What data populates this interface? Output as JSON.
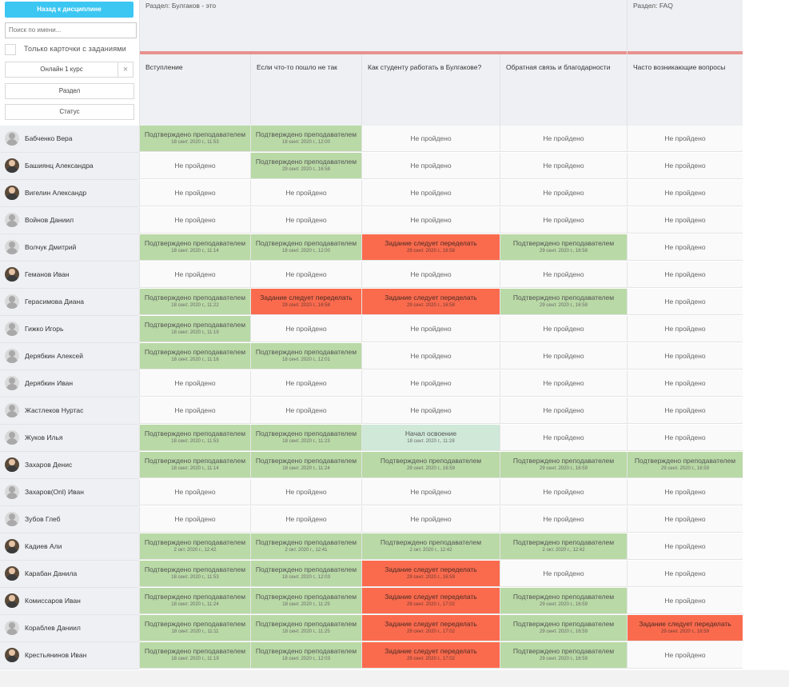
{
  "panel": {
    "back_label": "Назад к дисциплине",
    "search_placeholder": "Поиск по имени...",
    "only_cards_label": "Только карточки с заданиями",
    "course_value": "Онлайн 1 курс",
    "clear_icon": "×",
    "section_label": "Раздел",
    "status_label": "Статус"
  },
  "sections": [
    {
      "title": "Раздел: Булгаков - это"
    },
    {
      "title": "Раздел: FAQ"
    }
  ],
  "columns": [
    {
      "label": "Вступление"
    },
    {
      "label": "Если что-то пошло не так"
    },
    {
      "label": "Как студенту работать в Булгакове?"
    },
    {
      "label": "Обратная связь и благодарности"
    },
    {
      "label": "Часто возникающие вопросы"
    }
  ],
  "statuses": {
    "approved": "Подтверждено преподавателем",
    "redo": "Задание следует переделать",
    "none": "Не пройдено",
    "started": "Начал освоение"
  },
  "rows": [
    {
      "name": "Бабченко Вера",
      "avatar": "default",
      "cells": [
        {
          "s": "approved",
          "d": "18 сент. 2020 г., 11:53"
        },
        {
          "s": "approved",
          "d": "18 сент. 2020 г., 12:00"
        },
        {
          "s": "none"
        },
        {
          "s": "none"
        },
        {
          "s": "none"
        }
      ]
    },
    {
      "name": "Башиянц Александра",
      "avatar": "photo",
      "cells": [
        {
          "s": "none"
        },
        {
          "s": "approved",
          "d": "29 сент. 2020 г., 16:58"
        },
        {
          "s": "none"
        },
        {
          "s": "none"
        },
        {
          "s": "none"
        }
      ]
    },
    {
      "name": "Вигелин Александр",
      "avatar": "photo",
      "cells": [
        {
          "s": "none"
        },
        {
          "s": "none"
        },
        {
          "s": "none"
        },
        {
          "s": "none"
        },
        {
          "s": "none"
        }
      ]
    },
    {
      "name": "Войнов Даниил",
      "avatar": "default",
      "cells": [
        {
          "s": "none"
        },
        {
          "s": "none"
        },
        {
          "s": "none"
        },
        {
          "s": "none"
        },
        {
          "s": "none"
        }
      ]
    },
    {
      "name": "Волчук Дмитрий",
      "avatar": "default",
      "cells": [
        {
          "s": "approved",
          "d": "18 сент. 2020 г., 11:14"
        },
        {
          "s": "approved",
          "d": "18 сент. 2020 г., 12:00"
        },
        {
          "s": "redo",
          "d": "29 сент. 2020 г., 16:58"
        },
        {
          "s": "approved",
          "d": "29 сент. 2020 г., 16:58"
        },
        {
          "s": "none"
        }
      ]
    },
    {
      "name": "Геманов Иван",
      "avatar": "photo",
      "cells": [
        {
          "s": "none"
        },
        {
          "s": "none"
        },
        {
          "s": "none"
        },
        {
          "s": "none"
        },
        {
          "s": "none"
        }
      ]
    },
    {
      "name": "Герасимова Диана",
      "avatar": "default",
      "cells": [
        {
          "s": "approved",
          "d": "18 сент. 2020 г., 11:22"
        },
        {
          "s": "redo",
          "d": "29 сент. 2020 г., 16:58"
        },
        {
          "s": "redo",
          "d": "29 сент. 2020 г., 16:58"
        },
        {
          "s": "approved",
          "d": "29 сент. 2020 г., 16:58"
        },
        {
          "s": "none"
        }
      ]
    },
    {
      "name": "Гижко Игорь",
      "avatar": "default",
      "cells": [
        {
          "s": "approved",
          "d": "18 сент. 2020 г., 11:19"
        },
        {
          "s": "none"
        },
        {
          "s": "none"
        },
        {
          "s": "none"
        },
        {
          "s": "none"
        }
      ]
    },
    {
      "name": "Дерябкин Алексей",
      "avatar": "default",
      "cells": [
        {
          "s": "approved",
          "d": "18 сент. 2020 г., 11:16"
        },
        {
          "s": "approved",
          "d": "18 сент. 2020 г., 12:01"
        },
        {
          "s": "none"
        },
        {
          "s": "none"
        },
        {
          "s": "none"
        }
      ]
    },
    {
      "name": "Дерябкин Иван",
      "avatar": "default",
      "cells": [
        {
          "s": "none"
        },
        {
          "s": "none"
        },
        {
          "s": "none"
        },
        {
          "s": "none"
        },
        {
          "s": "none"
        }
      ]
    },
    {
      "name": "Жастлеков Нуртас",
      "avatar": "default",
      "cells": [
        {
          "s": "none"
        },
        {
          "s": "none"
        },
        {
          "s": "none"
        },
        {
          "s": "none"
        },
        {
          "s": "none"
        }
      ]
    },
    {
      "name": "Жуков Илья",
      "avatar": "default",
      "cells": [
        {
          "s": "approved",
          "d": "18 сент. 2020 г., 11:53"
        },
        {
          "s": "approved",
          "d": "18 сент. 2020 г., 11:23"
        },
        {
          "s": "started",
          "d": "18 сент. 2020 г., 11:28"
        },
        {
          "s": "none"
        },
        {
          "s": "none"
        }
      ]
    },
    {
      "name": "Захаров Денис",
      "avatar": "photo",
      "cells": [
        {
          "s": "approved",
          "d": "18 сент. 2020 г., 11:14"
        },
        {
          "s": "approved",
          "d": "18 сент. 2020 г., 11:24"
        },
        {
          "s": "approved",
          "d": "29 сент. 2020 г., 16:59"
        },
        {
          "s": "approved",
          "d": "29 сент. 2020 г., 16:59"
        },
        {
          "s": "approved",
          "d": "29 сент. 2020 г., 16:59"
        }
      ]
    },
    {
      "name": "Захаров(Onl) Иван",
      "avatar": "default",
      "cells": [
        {
          "s": "none"
        },
        {
          "s": "none"
        },
        {
          "s": "none"
        },
        {
          "s": "none"
        },
        {
          "s": "none"
        }
      ]
    },
    {
      "name": "Зубов Глеб",
      "avatar": "default",
      "cells": [
        {
          "s": "none"
        },
        {
          "s": "none"
        },
        {
          "s": "none"
        },
        {
          "s": "none"
        },
        {
          "s": "none"
        }
      ]
    },
    {
      "name": "Кадиев Али",
      "avatar": "photo",
      "cells": [
        {
          "s": "approved",
          "d": "2 окт. 2020 г., 12:42"
        },
        {
          "s": "approved",
          "d": "2 окт. 2020 г., 12:41"
        },
        {
          "s": "approved",
          "d": "2 окт. 2020 г., 12:42"
        },
        {
          "s": "approved",
          "d": "2 окт. 2020 г., 12:42"
        },
        {
          "s": "none"
        }
      ]
    },
    {
      "name": "Карабан Данила",
      "avatar": "photo",
      "cells": [
        {
          "s": "approved",
          "d": "18 сент. 2020 г., 11:53"
        },
        {
          "s": "approved",
          "d": "18 сент. 2020 г., 12:03"
        },
        {
          "s": "redo",
          "d": "29 сент. 2020 г., 16:59"
        },
        {
          "s": "none"
        },
        {
          "s": "none"
        }
      ]
    },
    {
      "name": "Комиссаров Иван",
      "avatar": "photo",
      "cells": [
        {
          "s": "approved",
          "d": "18 сент. 2020 г., 11:24"
        },
        {
          "s": "approved",
          "d": "18 сент. 2020 г., 11:25"
        },
        {
          "s": "redo",
          "d": "29 сент. 2020 г., 17:02"
        },
        {
          "s": "approved",
          "d": "29 сент. 2020 г., 16:59"
        },
        {
          "s": "none"
        }
      ]
    },
    {
      "name": "Кораблев Даниил",
      "avatar": "default",
      "cells": [
        {
          "s": "approved",
          "d": "18 сент. 2020 г., 11:11"
        },
        {
          "s": "approved",
          "d": "18 сент. 2020 г., 11:25"
        },
        {
          "s": "redo",
          "d": "29 сент. 2020 г., 17:02"
        },
        {
          "s": "approved",
          "d": "29 сент. 2020 г., 16:59"
        },
        {
          "s": "redo",
          "d": "29 сент. 2020 г., 16:59"
        }
      ]
    },
    {
      "name": "Крестьянинов Иван",
      "avatar": "photo",
      "cells": [
        {
          "s": "approved",
          "d": "18 сент. 2020 г., 11:19"
        },
        {
          "s": "approved",
          "d": "18 сент. 2020 г., 12:03"
        },
        {
          "s": "redo",
          "d": "29 сент. 2020 г., 17:02"
        },
        {
          "s": "approved",
          "d": "29 сент. 2020 г., 16:59"
        },
        {
          "s": "none"
        }
      ]
    }
  ]
}
